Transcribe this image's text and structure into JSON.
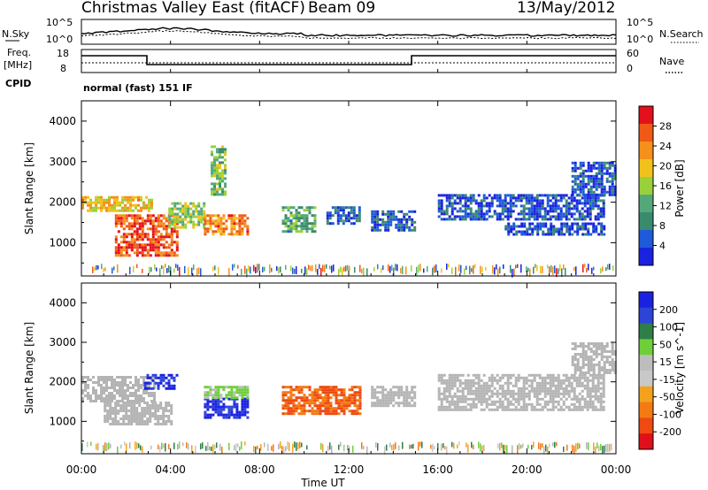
{
  "header": {
    "title": "Christmas Valley East (fitACF)",
    "beam": "Beam 09",
    "date": "13/May/2012"
  },
  "mini_panels": {
    "nsky_label": "N.Sky",
    "nsearch_label": "N.Search",
    "noise_ticks": [
      "10^5",
      "10^0"
    ],
    "freq_label_1": "Freq.",
    "freq_label_2": "[MHz]",
    "freq_ticks": [
      "18",
      "8"
    ],
    "nave_label": "Nave",
    "nave_ticks": [
      "60",
      "0"
    ],
    "cpid_label": "CPID",
    "cpid_value": "normal (fast) 151 IF"
  },
  "x_axis": {
    "label": "Time UT",
    "ticks": [
      "00:00",
      "04:00",
      "08:00",
      "12:00",
      "16:00",
      "20:00",
      "00:00"
    ]
  },
  "colors": {
    "power": [
      "#1a22e0",
      "#1f5bd8",
      "#3a8a6e",
      "#53a87a",
      "#9ad13b",
      "#f2c21a",
      "#f5901b",
      "#f05a16",
      "#e4101b"
    ],
    "velocity": [
      "#1a22e0",
      "#2d44d9",
      "#2f7e48",
      "#6ecf3a",
      "#bdbdbd",
      "#c8c8c8",
      "#f4a21e",
      "#f47a14",
      "#ee4a12",
      "#e0101a"
    ],
    "ground_scatter": "#b4b4b4"
  },
  "chart_data": [
    {
      "type": "heatmap",
      "panel": "power",
      "ylabel": "Slant Range [km]",
      "ylim": [
        180,
        4500
      ],
      "yticks": [
        "1000",
        "2000",
        "3000",
        "4000"
      ],
      "xlim_hours": [
        0,
        24
      ],
      "colorbar": {
        "label": "Power [dB]",
        "range": [
          0,
          32
        ],
        "ticks": [
          "4",
          "8",
          "12",
          "16",
          "20",
          "24",
          "28"
        ]
      },
      "regions": [
        {
          "t0": 0.0,
          "t1": 3.1,
          "r0": 1800,
          "r1": 2150,
          "level": 20
        },
        {
          "t0": 1.5,
          "t1": 4.3,
          "r0": 700,
          "r1": 1700,
          "level": 27
        },
        {
          "t0": 3.9,
          "t1": 5.5,
          "r0": 1400,
          "r1": 2000,
          "level": 16
        },
        {
          "t0": 5.5,
          "t1": 7.5,
          "r0": 1200,
          "r1": 1700,
          "level": 24
        },
        {
          "t0": 5.8,
          "t1": 6.4,
          "r0": 2200,
          "r1": 3400,
          "level": 14
        },
        {
          "t0": 9.0,
          "t1": 10.5,
          "r0": 1300,
          "r1": 1900,
          "level": 12
        },
        {
          "t0": 11.0,
          "t1": 12.5,
          "r0": 1500,
          "r1": 1900,
          "level": 6
        },
        {
          "t0": 13.0,
          "t1": 15.0,
          "r0": 1300,
          "r1": 1800,
          "level": 5
        },
        {
          "t0": 16.0,
          "t1": 23.5,
          "r0": 1600,
          "r1": 2200,
          "level": 4
        },
        {
          "t0": 19.0,
          "t1": 23.5,
          "r0": 1200,
          "r1": 1500,
          "level": 4
        },
        {
          "t0": 22.0,
          "t1": 24.0,
          "r0": 2200,
          "r1": 3000,
          "level": 5
        }
      ]
    },
    {
      "type": "heatmap",
      "panel": "velocity",
      "ylabel": "Slant Range [km]",
      "ylim": [
        180,
        4500
      ],
      "yticks": [
        "1000",
        "2000",
        "3000",
        "4000"
      ],
      "xlim_hours": [
        0,
        24
      ],
      "colorbar": {
        "label": "Velocity [m s^-1]",
        "range": [
          -250,
          250
        ],
        "ticks": [
          "200",
          "100",
          "50",
          "15",
          "-15",
          "-50",
          "-100",
          "-200"
        ]
      },
      "regions": [
        {
          "t0": 0.0,
          "t1": 3.3,
          "r0": 1500,
          "r1": 2150,
          "level": 0
        },
        {
          "t0": 1.0,
          "t1": 4.0,
          "r0": 900,
          "r1": 1500,
          "level": 0
        },
        {
          "t0": 2.8,
          "t1": 4.3,
          "r0": 1800,
          "r1": 2200,
          "level": 200
        },
        {
          "t0": 5.5,
          "t1": 7.5,
          "r0": 1100,
          "r1": 1600,
          "level": 220
        },
        {
          "t0": 5.5,
          "t1": 7.5,
          "r0": 1600,
          "r1": 1900,
          "level": 60
        },
        {
          "t0": 9.0,
          "t1": 12.5,
          "r0": 1200,
          "r1": 1900,
          "level": -150
        },
        {
          "t0": 13.0,
          "t1": 15.0,
          "r0": 1400,
          "r1": 1900,
          "level": 0
        },
        {
          "t0": 16.0,
          "t1": 23.5,
          "r0": 1300,
          "r1": 2200,
          "level": 0
        },
        {
          "t0": 22.0,
          "t1": 24.0,
          "r0": 2200,
          "r1": 3000,
          "level": 0
        }
      ]
    }
  ]
}
